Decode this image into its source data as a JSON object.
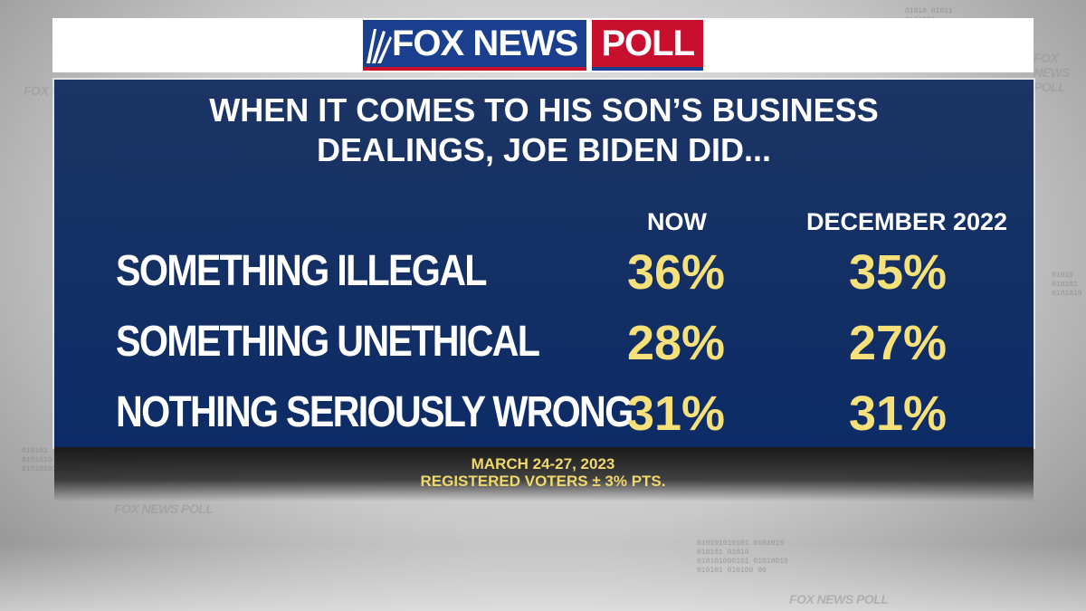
{
  "brand": {
    "logo_main": "FOX NEWS",
    "logo_poll": "POLL",
    "watermark": "FOX NEWS POLL",
    "colors": {
      "blue": "#1b3f8f",
      "red": "#c8102e",
      "panel": "#143064",
      "value_yellow": "#f6e07a"
    }
  },
  "chart_data": {
    "type": "table",
    "title_line1": "WHEN IT COMES TO HIS SON’S BUSINESS",
    "title_line2": "DEALINGS, JOE BIDEN DID...",
    "columns": [
      "NOW",
      "DECEMBER 2022"
    ],
    "rows": [
      {
        "label": "SOMETHING ILLEGAL",
        "values": [
          "36%",
          "35%"
        ]
      },
      {
        "label": "SOMETHING UNETHICAL",
        "values": [
          "28%",
          "27%"
        ]
      },
      {
        "label": "NOTHING SERIOUSLY WRONG",
        "values": [
          "31%",
          "31%"
        ]
      }
    ],
    "series": [
      {
        "name": "NOW",
        "values": [
          36,
          28,
          31
        ]
      },
      {
        "name": "DECEMBER 2022",
        "values": [
          35,
          27,
          31
        ]
      }
    ],
    "categories": [
      "SOMETHING ILLEGAL",
      "SOMETHING UNETHICAL",
      "NOTHING SERIOUSLY WRONG"
    ]
  },
  "footer": {
    "dates": "MARCH 24-27, 2023",
    "sample": "REGISTERED VOTERS ± 3% PTS."
  }
}
